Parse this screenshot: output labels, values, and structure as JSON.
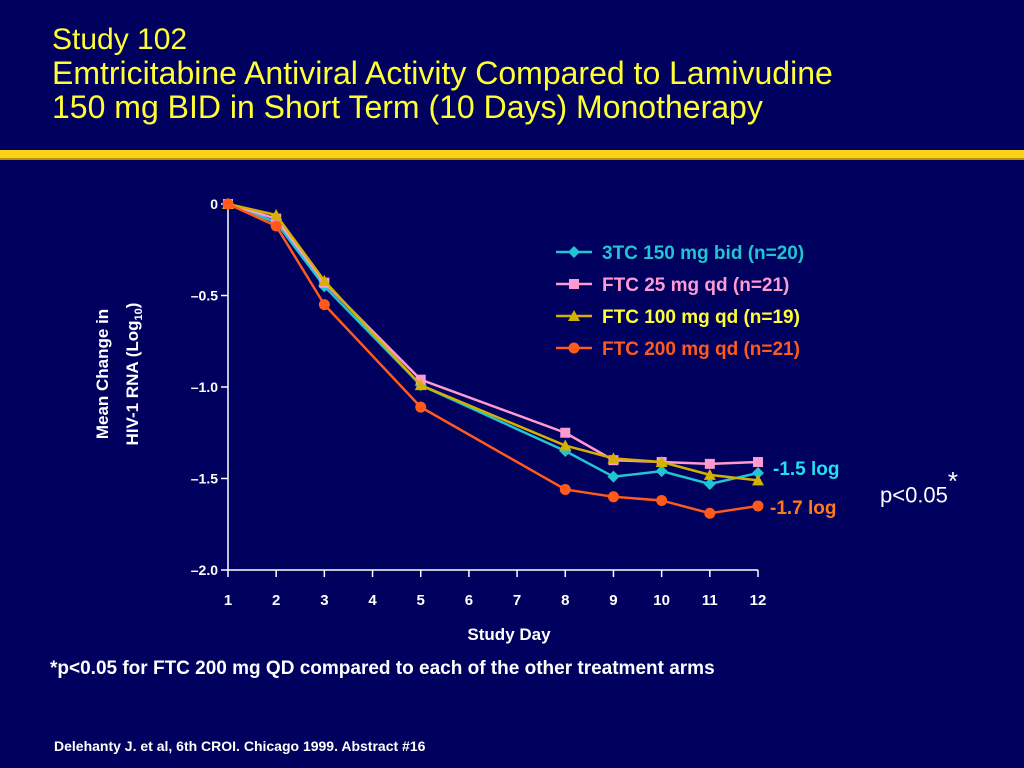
{
  "header": {
    "line1": "Study 102",
    "line2": "Emtricitabine Antiviral Activity Compared to Lamivudine",
    "line3": "150 mg BID in Short Term (10 Days) Monotherapy"
  },
  "footnote": "*p<0.05 for FTC 200 mg QD compared to each of the other treatment arms",
  "citation": "Delehanty J. et al,  6th CROI. Chicago 1999. Abstract #16",
  "pvalue": {
    "text": "p<0.05",
    "star": "*"
  },
  "chart_data": {
    "type": "line",
    "xlabel": "Study Day",
    "ylabel_line1": "Mean Change in",
    "ylabel_line2_pre": "HIV-1 RNA (Log",
    "ylabel_sub": "10",
    "ylabel_line2_post": ")",
    "x": [
      1,
      2,
      3,
      4,
      5,
      6,
      7,
      8,
      9,
      10,
      11,
      12
    ],
    "xlim": [
      1,
      12
    ],
    "ylim": [
      -2.0,
      0
    ],
    "yticks": [
      0,
      -0.5,
      -1.0,
      -1.5,
      -2.0
    ],
    "ytick_labels": [
      "0",
      "–0.5",
      "–1.0",
      "–1.5",
      "–2.0"
    ],
    "grid": false,
    "legend_position": "top-right",
    "series": [
      {
        "name": "3TC 150 mg bid (n=20)",
        "color": "#22c4d0",
        "marker": "diamond",
        "x": [
          1,
          2,
          3,
          5,
          8,
          9,
          10,
          11,
          12
        ],
        "values": [
          0,
          -0.1,
          -0.45,
          -0.99,
          -1.35,
          -1.49,
          -1.46,
          -1.53,
          -1.47
        ]
      },
      {
        "name": "FTC 25 mg qd (n=21)",
        "color": "#ff9ad0",
        "marker": "square",
        "x": [
          1,
          2,
          3,
          5,
          8,
          9,
          10,
          11,
          12
        ],
        "values": [
          0,
          -0.08,
          -0.43,
          -0.96,
          -1.25,
          -1.4,
          -1.41,
          -1.42,
          -1.41
        ]
      },
      {
        "name": "FTC 100 mg qd (n=19)",
        "color": "#d4b000",
        "marker": "triangle",
        "x": [
          1,
          2,
          3,
          5,
          8,
          9,
          10,
          11,
          12
        ],
        "values": [
          0,
          -0.06,
          -0.42,
          -0.99,
          -1.32,
          -1.39,
          -1.41,
          -1.48,
          -1.51
        ]
      },
      {
        "name": "FTC 200 mg qd (n=21)",
        "color": "#ff5a1a",
        "marker": "circle",
        "x": [
          1,
          2,
          3,
          5,
          8,
          9,
          10,
          11,
          12
        ],
        "values": [
          0,
          -0.12,
          -0.55,
          -1.11,
          -1.56,
          -1.6,
          -1.62,
          -1.69,
          -1.65
        ]
      }
    ],
    "annotations": [
      {
        "text": "-1.5 log",
        "color": "#22e0f0",
        "y": -1.5
      },
      {
        "text": "-1.7 log",
        "color": "#ff7a1a",
        "y": -1.66
      }
    ]
  }
}
